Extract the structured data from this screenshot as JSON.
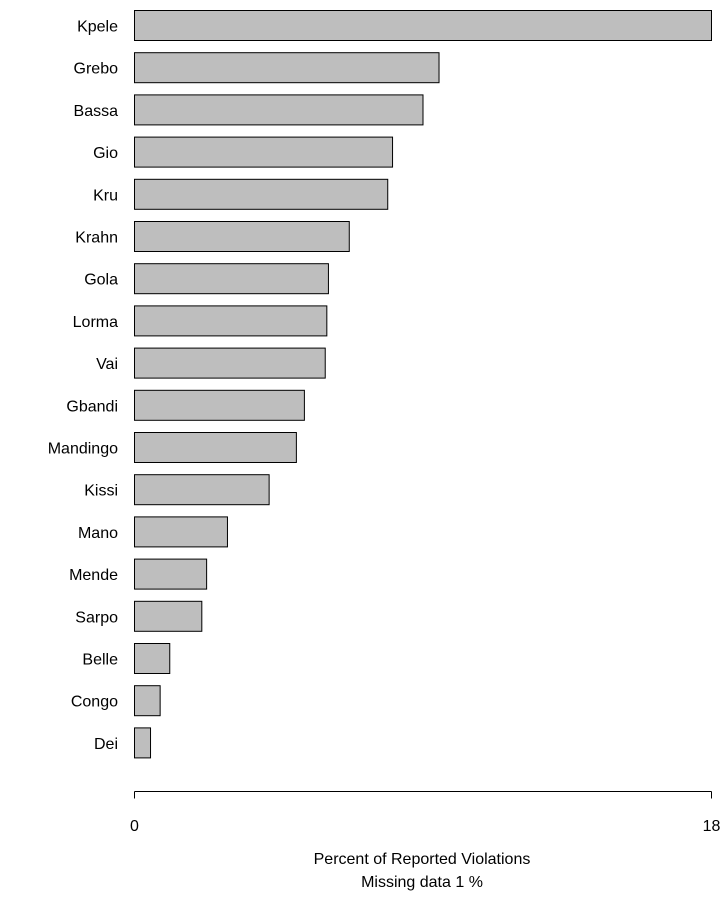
{
  "chart_data": {
    "type": "bar",
    "orientation": "horizontal",
    "categories": [
      "Kpele",
      "Grebo",
      "Bassa",
      "Gio",
      "Kru",
      "Krahn",
      "Gola",
      "Lorma",
      "Vai",
      "Gbandi",
      "Mandingo",
      "Kissi",
      "Mano",
      "Mende",
      "Sarpo",
      "Belle",
      "Congo",
      "Dei"
    ],
    "values": [
      18.0,
      9.5,
      9.0,
      8.05,
      7.9,
      6.7,
      6.05,
      6.0,
      5.95,
      5.3,
      5.05,
      4.2,
      2.9,
      2.25,
      2.1,
      1.1,
      0.8,
      0.5
    ],
    "title": "",
    "xlabel": "Percent of Reported Violations",
    "subtitle": "Missing data 1 %",
    "ylabel": "",
    "xlim": [
      0,
      18
    ],
    "xticks": [
      "0",
      "18"
    ],
    "grid": false,
    "bar_color": "#bebebe",
    "edge_color": "#000000"
  }
}
